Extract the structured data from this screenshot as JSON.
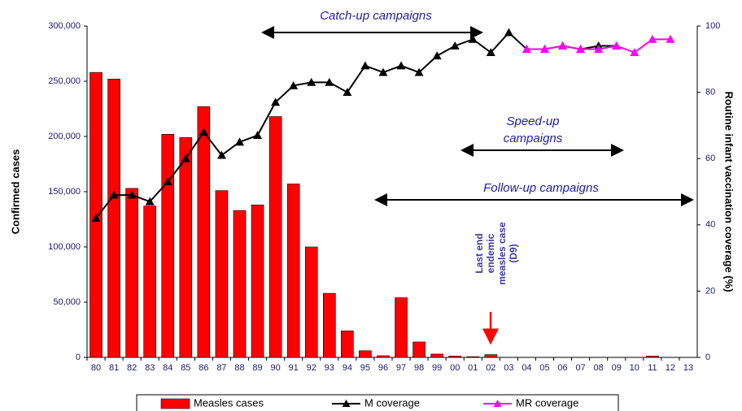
{
  "chart_data": {
    "type": "bar_line",
    "categories": [
      "80",
      "81",
      "82",
      "83",
      "84",
      "85",
      "86",
      "87",
      "88",
      "89",
      "90",
      "91",
      "92",
      "93",
      "94",
      "95",
      "96",
      "97",
      "98",
      "99",
      "00",
      "01",
      "02",
      "03",
      "04",
      "05",
      "06",
      "07",
      "08",
      "09",
      "10",
      "11",
      "12",
      "13"
    ],
    "series": [
      {
        "name": "Measles cases",
        "type": "bar",
        "color": "#ff0000",
        "axis": "y",
        "values": [
          258000,
          252000,
          153000,
          137000,
          202000,
          199000,
          227000,
          151000,
          133000,
          138000,
          218000,
          157000,
          100000,
          58000,
          24000,
          6000,
          1500,
          54000,
          14000,
          3000,
          1200,
          700,
          2500,
          0,
          0,
          0,
          0,
          0,
          0,
          0,
          0,
          1200,
          0,
          null
        ]
      },
      {
        "name": "M coverage",
        "type": "line",
        "color": "#000000",
        "axis": "y2",
        "values": [
          42,
          49,
          49,
          47,
          53,
          60,
          68,
          61,
          65,
          67,
          77,
          82,
          83,
          83,
          80,
          88,
          86,
          88,
          86,
          91,
          94,
          96,
          92,
          98,
          93,
          93,
          94,
          93,
          94,
          94,
          null,
          null,
          null,
          null
        ]
      },
      {
        "name": "MR coverage",
        "type": "line",
        "color": "#ff00ff",
        "axis": "y2",
        "values": [
          null,
          null,
          null,
          null,
          null,
          null,
          null,
          null,
          null,
          null,
          null,
          null,
          null,
          null,
          null,
          null,
          null,
          null,
          null,
          null,
          null,
          null,
          null,
          null,
          93,
          93,
          94,
          93,
          93,
          94,
          92,
          96,
          96,
          null
        ]
      }
    ],
    "ylabel": "Confirmed cases",
    "y2label": "Routine infant vaccination coverage (%)",
    "ylim": [
      0,
      300000
    ],
    "yticks": [
      0,
      {
        "value": 50000,
        "label": "50,000"
      },
      {
        "value": 100000,
        "label": "100,000"
      },
      {
        "value": 150000,
        "label": "150,000"
      },
      {
        "value": 200000,
        "label": "200,000"
      },
      {
        "value": 250000,
        "label": "250,000"
      },
      {
        "value": 300000,
        "label": "300,000"
      }
    ],
    "y2lim": [
      0,
      100
    ],
    "y2ticks": [
      0,
      20,
      40,
      60,
      80,
      100
    ],
    "annotations": {
      "catch_up": "Catch-up campaigns",
      "speed_up": [
        "Speed-up",
        "campaigns"
      ],
      "follow_up": "Follow-up campaigns",
      "last_case": [
        "Last end",
        "endemic",
        "measles case",
        "(D9)"
      ]
    }
  }
}
